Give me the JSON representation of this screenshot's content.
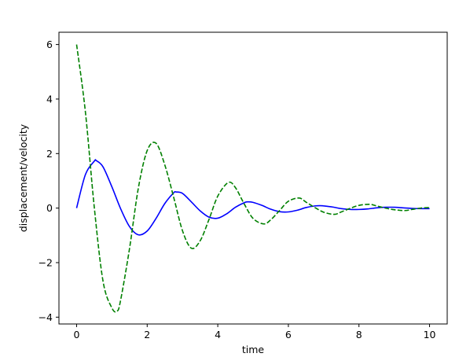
{
  "chart_data": {
    "type": "line",
    "title": "",
    "xlabel": "time",
    "ylabel": "displacement/velocity",
    "xlim": [
      -0.5,
      10.5
    ],
    "ylim": [
      -4.25,
      6.45
    ],
    "xticks": [
      0,
      2,
      4,
      6,
      8,
      10
    ],
    "yticks": [
      -4,
      -2,
      0,
      2,
      4,
      6
    ],
    "xtick_labels": [
      "0",
      "2",
      "4",
      "6",
      "8",
      "10"
    ],
    "ytick_labels": [
      "−4",
      "−2",
      "0",
      "2",
      "4",
      "6"
    ],
    "grid": false,
    "legend": false,
    "series": [
      {
        "style": "solid",
        "color": "#0000ff",
        "x": [
          0.0,
          0.25,
          0.5,
          0.56,
          0.75,
          1.0,
          1.25,
          1.5,
          1.75,
          2.0,
          2.25,
          2.5,
          2.75,
          2.82,
          3.0,
          3.25,
          3.5,
          3.75,
          4.0,
          4.25,
          4.5,
          4.75,
          4.85,
          5.0,
          5.25,
          5.5,
          5.75,
          6.0,
          6.25,
          6.5,
          6.75,
          6.9,
          7.0,
          7.25,
          7.5,
          7.75,
          8.0,
          8.25,
          8.5,
          8.75,
          9.0,
          9.25,
          9.5,
          9.75,
          10.0
        ],
        "y": [
          0.0,
          1.23,
          1.72,
          1.74,
          1.51,
          0.78,
          -0.03,
          -0.68,
          -0.98,
          -0.84,
          -0.38,
          0.17,
          0.56,
          0.59,
          0.54,
          0.23,
          -0.1,
          -0.33,
          -0.37,
          -0.21,
          0.03,
          0.2,
          0.23,
          0.21,
          0.1,
          -0.04,
          -0.13,
          -0.14,
          -0.08,
          0.02,
          0.08,
          0.09,
          0.08,
          0.04,
          -0.02,
          -0.05,
          -0.05,
          -0.03,
          0.01,
          0.03,
          0.03,
          0.01,
          -0.01,
          -0.02,
          -0.02
        ]
      },
      {
        "style": "dashed",
        "color": "#008000",
        "x": [
          0.0,
          0.25,
          0.5,
          0.75,
          1.0,
          1.15,
          1.25,
          1.5,
          1.75,
          2.0,
          2.25,
          2.5,
          2.75,
          3.0,
          3.25,
          3.5,
          3.75,
          4.0,
          4.3,
          4.5,
          4.75,
          5.0,
          5.3,
          5.5,
          5.75,
          6.0,
          6.3,
          6.5,
          6.75,
          7.0,
          7.3,
          7.5,
          7.75,
          8.0,
          8.3,
          8.5,
          8.75,
          9.0,
          9.3,
          9.5,
          9.75,
          10.0
        ],
        "y": [
          6.0,
          3.52,
          0.04,
          -2.69,
          -3.66,
          -3.78,
          -3.36,
          -1.48,
          0.74,
          2.11,
          2.38,
          1.58,
          0.4,
          -0.83,
          -1.47,
          -1.2,
          -0.42,
          0.44,
          0.94,
          0.75,
          0.15,
          -0.38,
          -0.58,
          -0.43,
          -0.09,
          0.25,
          0.37,
          0.22,
          0.02,
          -0.15,
          -0.23,
          -0.14,
          -0.01,
          0.1,
          0.14,
          0.08,
          0.0,
          -0.06,
          -0.09,
          -0.05,
          0.0,
          0.02
        ]
      }
    ]
  }
}
